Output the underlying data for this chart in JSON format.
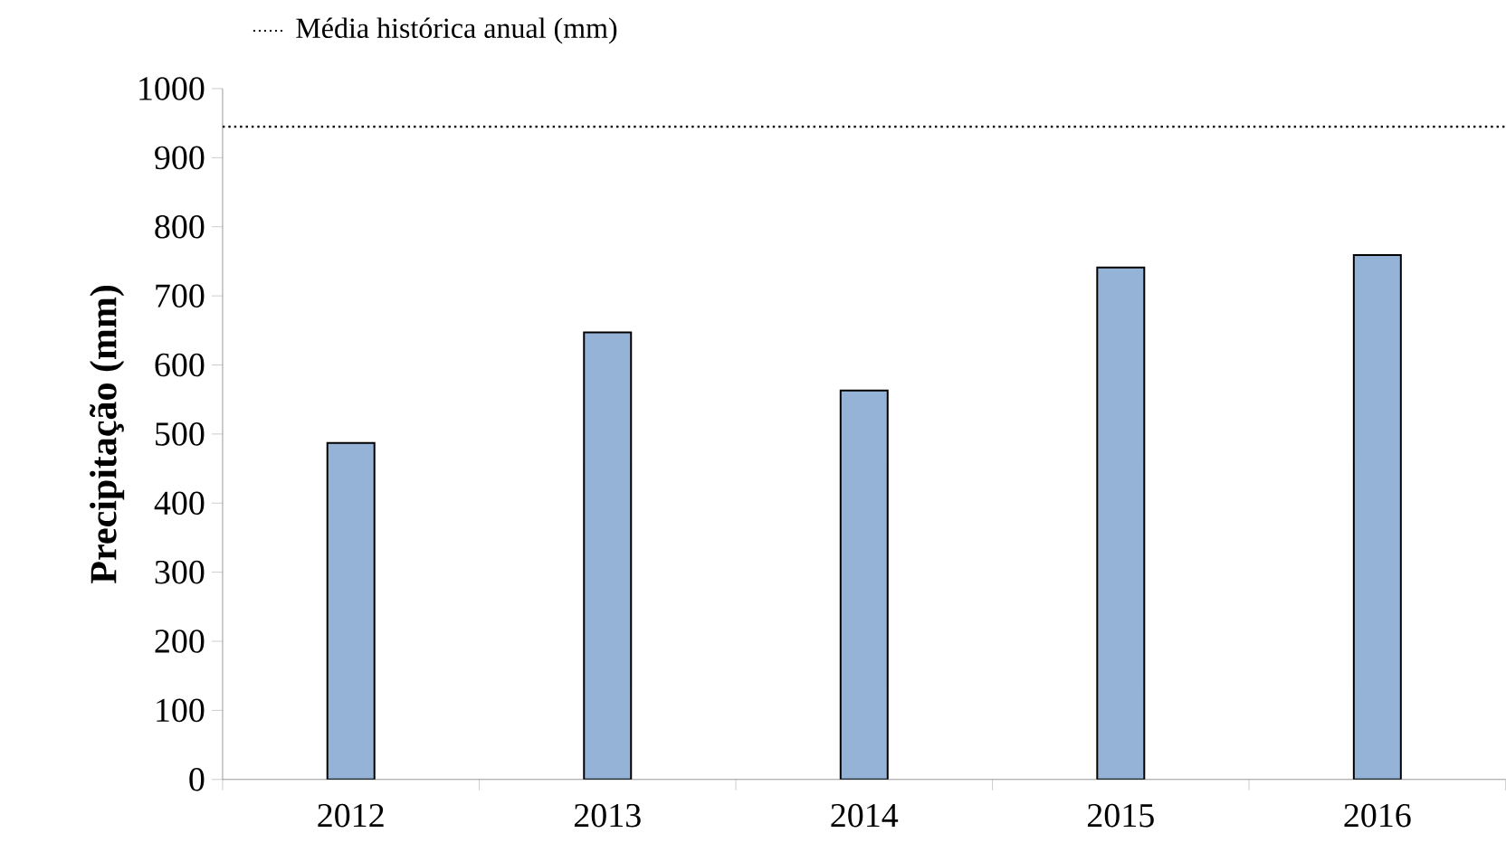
{
  "chart_data": {
    "type": "bar",
    "ylabel": "Precipitação (mm)",
    "categories": [
      "2012",
      "2013",
      "2014",
      "2015",
      "2016"
    ],
    "values": [
      487,
      647,
      563,
      741,
      759
    ],
    "color": "#95b3d7",
    "ylim": [
      0,
      1000
    ],
    "yticks": [
      0,
      100,
      200,
      300,
      400,
      500,
      600,
      700,
      800,
      900,
      1000
    ],
    "ref_lines": [
      {
        "axis": "y",
        "value": 945,
        "label": "Média histórica anual (mm)",
        "line_style": "dotted",
        "color": "#000000"
      }
    ],
    "grid": false
  }
}
